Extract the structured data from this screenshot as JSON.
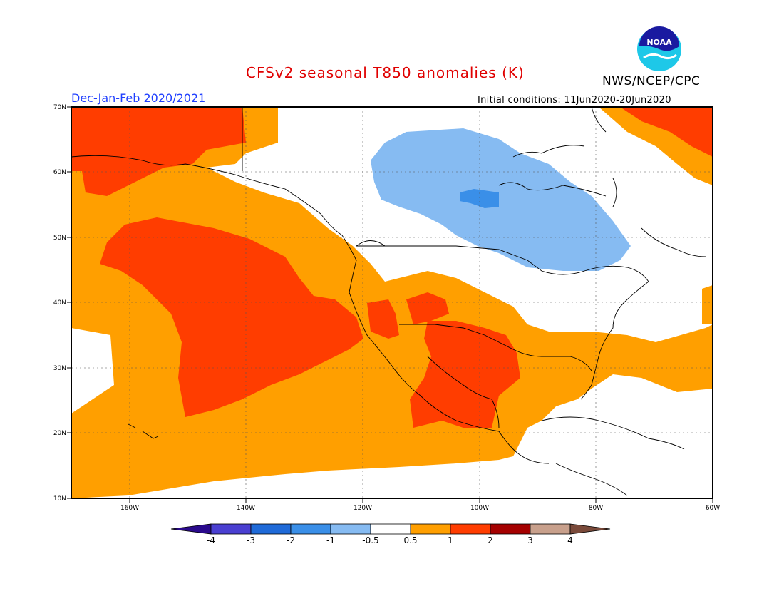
{
  "title": "CFSv2 seasonal T850 anomalies (K)",
  "agency": "NWS/NCEP/CPC",
  "logo_text": "NOAA",
  "season": "Dec-Jan-Feb 2020/2021",
  "initial_conditions": "Initial conditions: 11Jun2020-20Jun2020",
  "lat_labels": [
    "70N",
    "60N",
    "50N",
    "40N",
    "30N",
    "20N",
    "10N"
  ],
  "lon_labels": [
    "160W",
    "140W",
    "120W",
    "100W",
    "80W",
    "60W"
  ],
  "colorbar": {
    "labels": [
      "-4",
      "-3",
      "-2",
      "-1",
      "-0.5",
      "0.5",
      "1",
      "2",
      "3",
      "4"
    ],
    "colors": [
      "#2a0a8c",
      "#4a3fd1",
      "#1f6ad8",
      "#3a8fe8",
      "#86bbf2",
      "#ffffff",
      "#ff9f00",
      "#ff3d00",
      "#a50000",
      "#c8a08c",
      "#7a4a3a"
    ]
  },
  "colors": {
    "title": "#e00000",
    "season": "#1f3fff",
    "anom_0_5_to_1": "#ff9f00",
    "anom_1_to_2": "#ff3d00",
    "anom_neg_0_5_to_neg_1": "#86bbf2",
    "anom_neg_1_to_neg_2": "#3a8fe8"
  }
}
